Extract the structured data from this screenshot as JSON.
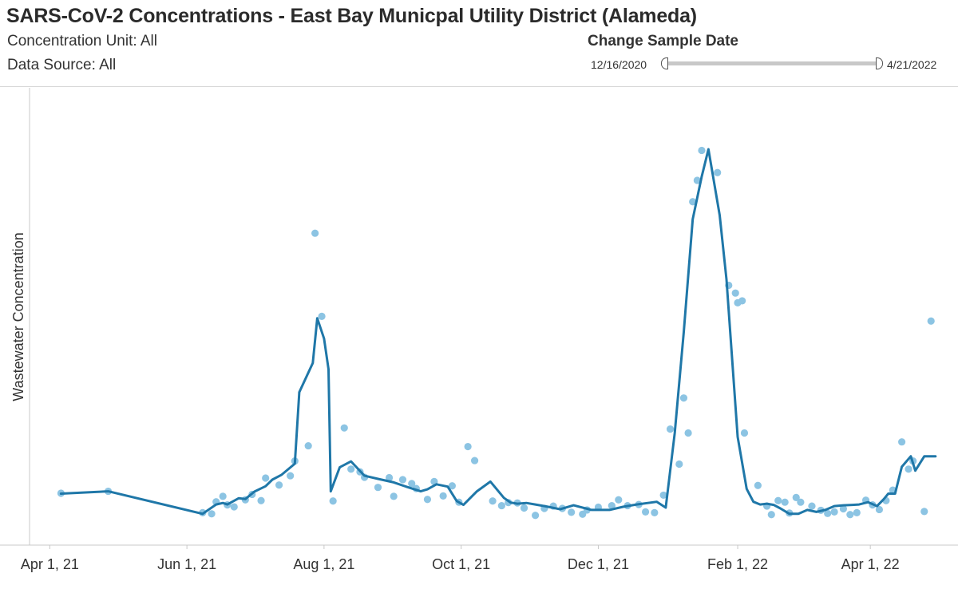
{
  "header": {
    "title": "SARS-CoV-2 Concentrations - East Bay Municpal Utility District (Alameda)",
    "concentration_unit": "Concentration Unit:  All",
    "data_source": "Data Source: All"
  },
  "date_filter": {
    "label": "Change Sample Date",
    "min": "12/16/2020",
    "max": "4/21/2022"
  },
  "colors": {
    "line": "#1f77a8",
    "points": "#8cc4e3",
    "axis": "#c8c8c8"
  },
  "chart_data": {
    "type": "line",
    "title": "",
    "xlabel": "",
    "ylabel": "Wastewater Concentration",
    "x_ticks": [
      "Apr 1, 21",
      "Jun 1, 21",
      "Aug 1, 21",
      "Oct 1, 21",
      "Dec 1, 21",
      "Feb 1, 22",
      "Apr 1, 22"
    ],
    "x_range": [
      "2021-03-23",
      "2022-05-10"
    ],
    "ylim": [
      0,
      1000
    ],
    "y_ticks_shown": false,
    "grid": false,
    "series": [
      {
        "kind": "line",
        "points": [
          [
            "2021-04-06",
            114
          ],
          [
            "2021-04-27",
            120
          ],
          [
            "2021-06-08",
            62
          ],
          [
            "2021-06-14",
            86
          ],
          [
            "2021-06-17",
            90
          ],
          [
            "2021-06-19",
            86
          ],
          [
            "2021-06-24",
            102
          ],
          [
            "2021-06-27",
            100
          ],
          [
            "2021-07-01",
            119
          ],
          [
            "2021-07-06",
            133
          ],
          [
            "2021-07-09",
            150
          ],
          [
            "2021-07-13",
            162
          ],
          [
            "2021-07-19",
            191
          ],
          [
            "2021-07-21",
            375
          ],
          [
            "2021-07-27",
            450
          ],
          [
            "2021-07-29",
            565
          ],
          [
            "2021-08-01",
            513
          ],
          [
            "2021-08-03",
            434
          ],
          [
            "2021-08-04",
            120
          ],
          [
            "2021-08-08",
            182
          ],
          [
            "2021-08-13",
            197
          ],
          [
            "2021-08-19",
            160
          ],
          [
            "2021-08-25",
            152
          ],
          [
            "2021-09-01",
            143
          ],
          [
            "2021-09-07",
            131
          ],
          [
            "2021-09-13",
            120
          ],
          [
            "2021-09-16",
            125
          ],
          [
            "2021-09-20",
            138
          ],
          [
            "2021-09-25",
            132
          ],
          [
            "2021-09-29",
            95
          ],
          [
            "2021-10-02",
            85
          ],
          [
            "2021-10-08",
            120
          ],
          [
            "2021-10-14",
            145
          ],
          [
            "2021-10-20",
            103
          ],
          [
            "2021-10-23",
            91
          ],
          [
            "2021-10-26",
            88
          ],
          [
            "2021-10-30",
            90
          ],
          [
            "2021-11-03",
            86
          ],
          [
            "2021-11-08",
            81
          ],
          [
            "2021-11-14",
            74
          ],
          [
            "2021-11-20",
            84
          ],
          [
            "2021-11-28",
            72
          ],
          [
            "2021-12-06",
            72
          ],
          [
            "2021-12-12",
            80
          ],
          [
            "2021-12-18",
            86
          ],
          [
            "2021-12-27",
            93
          ],
          [
            "2021-12-31",
            78
          ],
          [
            "2022-01-04",
            270
          ],
          [
            "2022-01-08",
            530
          ],
          [
            "2022-01-12",
            820
          ],
          [
            "2022-01-16",
            930
          ],
          [
            "2022-01-19",
            1000
          ],
          [
            "2022-01-24",
            830
          ],
          [
            "2022-01-27",
            665
          ],
          [
            "2022-02-01",
            260
          ],
          [
            "2022-02-05",
            126
          ],
          [
            "2022-02-08",
            93
          ],
          [
            "2022-02-11",
            86
          ],
          [
            "2022-02-14",
            88
          ],
          [
            "2022-02-17",
            85
          ],
          [
            "2022-02-20",
            76
          ],
          [
            "2022-02-24",
            62
          ],
          [
            "2022-02-28",
            62
          ],
          [
            "2022-03-04",
            72
          ],
          [
            "2022-03-08",
            67
          ],
          [
            "2022-03-12",
            72
          ],
          [
            "2022-03-16",
            82
          ],
          [
            "2022-03-20",
            84
          ],
          [
            "2022-03-24",
            85
          ],
          [
            "2022-03-27",
            86
          ],
          [
            "2022-03-31",
            92
          ],
          [
            "2022-04-04",
            82
          ],
          [
            "2022-04-07",
            100
          ],
          [
            "2022-04-09",
            114
          ],
          [
            "2022-04-12",
            114
          ],
          [
            "2022-04-15",
            183
          ],
          [
            "2022-04-19",
            210
          ],
          [
            "2022-04-21",
            173
          ],
          [
            "2022-04-25",
            210
          ],
          [
            "2022-04-30",
            210
          ]
        ]
      },
      {
        "kind": "scatter",
        "points": [
          [
            "2021-04-06",
            115
          ],
          [
            "2021-04-27",
            120
          ],
          [
            "2021-06-08",
            65
          ],
          [
            "2021-06-12",
            62
          ],
          [
            "2021-06-14",
            93
          ],
          [
            "2021-06-17",
            107
          ],
          [
            "2021-06-19",
            85
          ],
          [
            "2021-06-22",
            80
          ],
          [
            "2021-06-27",
            98
          ],
          [
            "2021-06-30",
            112
          ],
          [
            "2021-07-04",
            96
          ],
          [
            "2021-07-06",
            154
          ],
          [
            "2021-07-12",
            136
          ],
          [
            "2021-07-17",
            160
          ],
          [
            "2021-07-19",
            198
          ],
          [
            "2021-07-25",
            237
          ],
          [
            "2021-07-28",
            784
          ],
          [
            "2021-07-31",
            570
          ],
          [
            "2021-08-05",
            95
          ],
          [
            "2021-08-10",
            283
          ],
          [
            "2021-08-13",
            177
          ],
          [
            "2021-08-17",
            170
          ],
          [
            "2021-08-19",
            156
          ],
          [
            "2021-08-25",
            130
          ],
          [
            "2021-08-30",
            155
          ],
          [
            "2021-09-01",
            107
          ],
          [
            "2021-09-05",
            150
          ],
          [
            "2021-09-09",
            140
          ],
          [
            "2021-09-11",
            127
          ],
          [
            "2021-09-16",
            99
          ],
          [
            "2021-09-19",
            145
          ],
          [
            "2021-09-23",
            108
          ],
          [
            "2021-09-27",
            134
          ],
          [
            "2021-09-30",
            92
          ],
          [
            "2021-10-04",
            235
          ],
          [
            "2021-10-07",
            199
          ],
          [
            "2021-10-15",
            95
          ],
          [
            "2021-10-19",
            83
          ],
          [
            "2021-10-22",
            91
          ],
          [
            "2021-10-26",
            90
          ],
          [
            "2021-10-29",
            77
          ],
          [
            "2021-11-03",
            58
          ],
          [
            "2021-11-07",
            76
          ],
          [
            "2021-11-11",
            82
          ],
          [
            "2021-11-15",
            76
          ],
          [
            "2021-11-19",
            66
          ],
          [
            "2021-11-24",
            61
          ],
          [
            "2021-11-26",
            72
          ],
          [
            "2021-12-01",
            79
          ],
          [
            "2021-12-07",
            83
          ],
          [
            "2021-12-10",
            98
          ],
          [
            "2021-12-14",
            83
          ],
          [
            "2021-12-19",
            86
          ],
          [
            "2021-12-22",
            67
          ],
          [
            "2021-12-26",
            65
          ],
          [
            "2021-12-30",
            110
          ],
          [
            "2022-01-02",
            280
          ],
          [
            "2022-01-06",
            190
          ],
          [
            "2022-01-08",
            360
          ],
          [
            "2022-01-10",
            270
          ],
          [
            "2022-01-12",
            865
          ],
          [
            "2022-01-14",
            920
          ],
          [
            "2022-01-16",
            997
          ],
          [
            "2022-01-23",
            940
          ],
          [
            "2022-01-28",
            650
          ],
          [
            "2022-01-31",
            630
          ],
          [
            "2022-02-01",
            605
          ],
          [
            "2022-02-03",
            610
          ],
          [
            "2022-02-04",
            270
          ],
          [
            "2022-02-10",
            135
          ],
          [
            "2022-02-14",
            82
          ],
          [
            "2022-02-16",
            60
          ],
          [
            "2022-02-19",
            96
          ],
          [
            "2022-02-22",
            92
          ],
          [
            "2022-02-24",
            64
          ],
          [
            "2022-02-27",
            104
          ],
          [
            "2022-03-01",
            92
          ],
          [
            "2022-03-06",
            82
          ],
          [
            "2022-03-10",
            71
          ],
          [
            "2022-03-13",
            63
          ],
          [
            "2022-03-16",
            67
          ],
          [
            "2022-03-20",
            75
          ],
          [
            "2022-03-23",
            60
          ],
          [
            "2022-03-26",
            65
          ],
          [
            "2022-03-30",
            97
          ],
          [
            "2022-04-02",
            85
          ],
          [
            "2022-04-05",
            73
          ],
          [
            "2022-04-08",
            96
          ],
          [
            "2022-04-11",
            123
          ],
          [
            "2022-04-15",
            247
          ],
          [
            "2022-04-18",
            177
          ],
          [
            "2022-04-20",
            198
          ],
          [
            "2022-04-25",
            68
          ],
          [
            "2022-04-28",
            558
          ]
        ]
      }
    ]
  }
}
